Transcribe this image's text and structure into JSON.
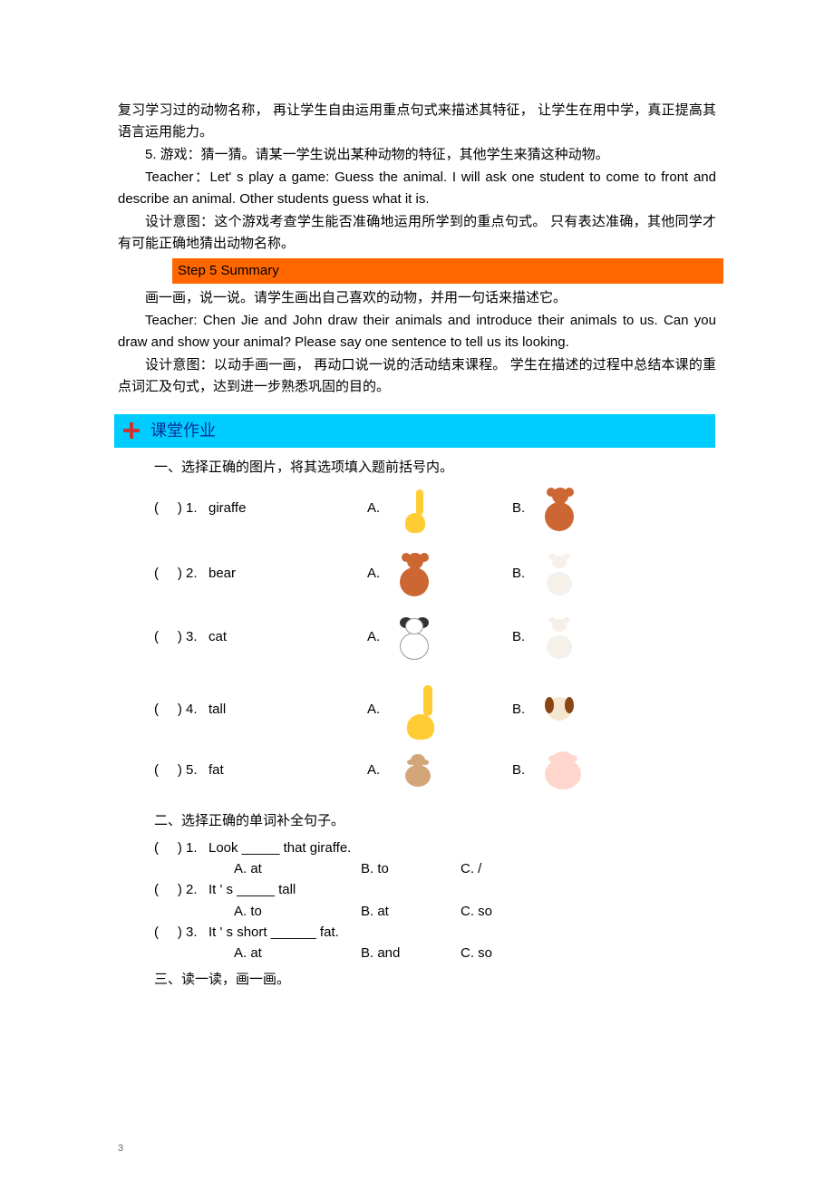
{
  "body": {
    "p1": "复习学习过的动物名称， 再让学生自由运用重点句式来描述其特征， 让学生在用中学，真正提高其语言运用能力。",
    "p2": "5.  游戏：猜一猜。请某一学生说出某种动物的特征，其他学生来猜这种动物。",
    "p3": "Teacher：Let' s play a game: Guess the animal. I will ask one student to come to front and describe an animal. Other students guess what it is.",
    "p4": "设计意图：这个游戏考查学生能否准确地运用所学到的重点句式。 只有表达准确，其他同学才有可能正确地猜出动物名称。",
    "step5": "Step 5 Summary",
    "p5": "画一画，说一说。请学生画出自己喜欢的动物，并用一句话来描述它。",
    "p6": "Teacher: Chen Jie and John draw their animals and introduce their animals to us. Can you draw and show your animal? Please say one sentence to tell us its looking.",
    "p7": "设计意图：以动手画一画， 再动口说一说的活动结束课程。 学生在描述的过程中总结本课的重点词汇及句式，达到进一步熟悉巩固的目的。"
  },
  "section": "课堂作业",
  "paren_open": "(",
  "paren_close": ")",
  "q1": {
    "title": "一、选择正确的图片，将其选项填入题前括号内。",
    "items": [
      {
        "num": "1.",
        "word": "giraffe",
        "a_letter": "A.",
        "b_letter": "B.",
        "imgA": "giraffe-sm",
        "imgB": "bear",
        "h": "img-row"
      },
      {
        "num": "2.",
        "word": "bear",
        "a_letter": "A.",
        "b_letter": "B.",
        "imgA": "bear",
        "imgB": "cat",
        "h": "img-row"
      },
      {
        "num": "3.",
        "word": "cat",
        "a_letter": "A.",
        "b_letter": "B.",
        "imgA": "panda",
        "imgB": "cat",
        "h": "img-row"
      },
      {
        "num": "4.",
        "word": "tall",
        "a_letter": "A.",
        "b_letter": "B.",
        "imgA": "giraffe-lg",
        "imgB": "dog",
        "h": "img-row-tall2"
      },
      {
        "num": "5.",
        "word": "fat",
        "a_letter": "A.",
        "b_letter": "B.",
        "imgA": "monkey",
        "imgB": "pig",
        "h": "img-row"
      }
    ]
  },
  "q2": {
    "title": "二、选择正确的单词补全句子。",
    "items": [
      {
        "num": "1.",
        "text": "Look _____ that giraffe.",
        "opts": [
          {
            "letter": "A.",
            "val": "at"
          },
          {
            "letter": "B.",
            "val": "to"
          },
          {
            "letter": "C.",
            "val": "/"
          }
        ]
      },
      {
        "num": "2.",
        "text": "It ' s _____  tall",
        "opts": [
          {
            "letter": "A.",
            "val": "to"
          },
          {
            "letter": "B.",
            "val": "at"
          },
          {
            "letter": "C.",
            "val": "so"
          }
        ]
      },
      {
        "num": "3.",
        "text": "It ' s short ______ fat.",
        "opts": [
          {
            "letter": "A.",
            "val": "at"
          },
          {
            "letter": "B.",
            "val": "and"
          },
          {
            "letter": "C.",
            "val": "so"
          }
        ]
      }
    ]
  },
  "q3": {
    "title": "三、读一读，画一画。"
  },
  "page_num": "3",
  "colors": {
    "step_bg": "#ff6600",
    "section_bg": "#00ccff",
    "section_text": "#003399",
    "marker": "#cc3333"
  }
}
